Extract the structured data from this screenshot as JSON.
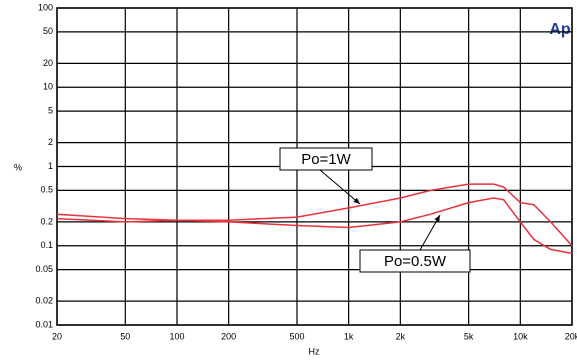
{
  "chart_data": {
    "type": "line",
    "logo": "Ap",
    "xlabel": "Hz",
    "ylabel": "%",
    "x": [
      20,
      50,
      100,
      200,
      500,
      1000,
      2000,
      3000,
      5000,
      7000,
      8000,
      10000,
      12000,
      15000,
      20000
    ],
    "series": [
      {
        "name": "Po=1W",
        "color": "#e8323c",
        "values": [
          0.25,
          0.22,
          0.21,
          0.21,
          0.23,
          0.3,
          0.4,
          0.5,
          0.6,
          0.6,
          0.55,
          0.35,
          0.33,
          0.2,
          0.1
        ]
      },
      {
        "name": "Po=0.5W",
        "color": "#e8323c",
        "values": [
          0.22,
          0.2,
          0.21,
          0.2,
          0.18,
          0.17,
          0.2,
          0.25,
          0.35,
          0.4,
          0.38,
          0.2,
          0.12,
          0.09,
          0.08
        ]
      }
    ],
    "xlim": [
      20,
      20000
    ],
    "ylim": [
      0.01,
      100
    ],
    "xlog": true,
    "ylog": true,
    "grid": true,
    "xticks": [
      20,
      50,
      100,
      200,
      500,
      {
        "value": 1000,
        "label": "1k"
      },
      {
        "value": 2000,
        "label": "2k"
      },
      {
        "value": 5000,
        "label": "5k"
      },
      {
        "value": 10000,
        "label": "10k"
      },
      {
        "value": 20000,
        "label": "20k"
      }
    ],
    "yticks": [
      0.01,
      0.02,
      0.05,
      0.1,
      0.2,
      0.5,
      1,
      2,
      5,
      10,
      20,
      50,
      100
    ]
  }
}
